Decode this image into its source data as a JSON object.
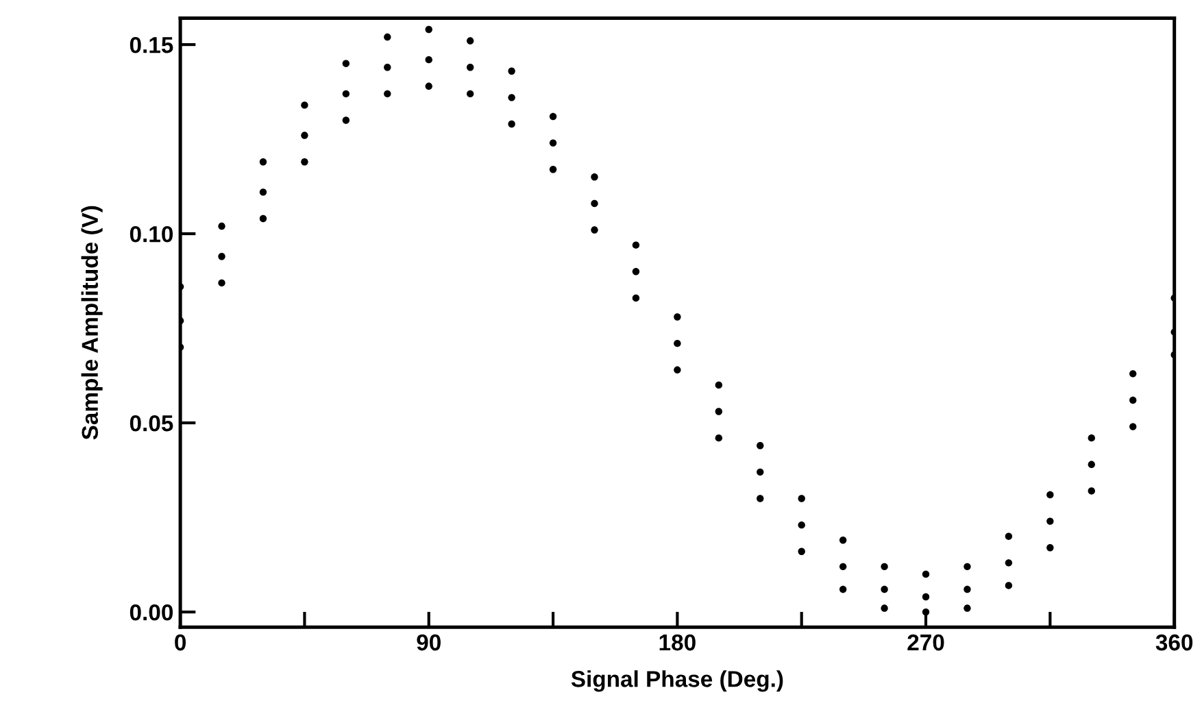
{
  "chart_data": {
    "type": "scatter",
    "xlabel": "Signal Phase (Deg.)",
    "ylabel": "Sample Amplitude (V)",
    "xlim": [
      0,
      360
    ],
    "xticks": [
      0,
      {
        "value": 45,
        "label": null
      },
      90,
      {
        "value": 135,
        "label": null
      },
      180,
      {
        "value": 225,
        "label": null
      },
      270,
      {
        "value": 315,
        "label": null
      },
      360
    ],
    "ylim": [
      -0.004,
      0.157
    ],
    "yticks": [
      {
        "value": 0,
        "label": "0.00"
      },
      {
        "value": 0.05,
        "label": "0.05"
      },
      {
        "value": 0.1,
        "label": "0.10"
      },
      {
        "value": 0.15,
        "label": "0.15"
      }
    ],
    "grid": false,
    "legend": false,
    "marker": "circle",
    "series": [
      {
        "color": "#000000",
        "x": [
          0,
          15,
          30,
          45,
          60,
          75,
          90,
          105,
          120,
          135,
          150,
          165,
          180,
          195,
          210,
          225,
          240,
          255,
          270,
          285,
          300,
          315,
          330,
          345,
          360
        ],
        "values": [
          0.077,
          0.094,
          0.111,
          0.126,
          0.137,
          0.144,
          0.146,
          0.144,
          0.136,
          0.124,
          0.108,
          0.09,
          0.071,
          0.053,
          0.037,
          0.023,
          0.012,
          0.006,
          0.004,
          0.006,
          0.013,
          0.024,
          0.039,
          0.056,
          0.074
        ]
      },
      {
        "color": "#000000",
        "x": [
          0,
          15,
          30,
          45,
          60,
          75,
          90,
          105,
          120,
          135,
          150,
          165,
          180,
          195,
          210,
          225,
          240,
          255,
          270,
          285,
          300,
          315,
          330,
          345,
          360
        ],
        "values": [
          0.086,
          0.102,
          0.119,
          0.134,
          0.145,
          0.152,
          0.154,
          0.151,
          0.143,
          0.131,
          0.115,
          0.097,
          0.078,
          0.06,
          0.044,
          0.03,
          0.019,
          0.012,
          0.01,
          0.012,
          0.02,
          0.031,
          0.046,
          0.063,
          0.083
        ]
      },
      {
        "color": "#000000",
        "x": [
          0,
          15,
          30,
          45,
          60,
          75,
          90,
          105,
          120,
          135,
          150,
          165,
          180,
          195,
          210,
          225,
          240,
          255,
          270,
          285,
          300,
          315,
          330,
          345,
          360
        ],
        "values": [
          0.07,
          0.087,
          0.104,
          0.119,
          0.13,
          0.137,
          0.139,
          0.137,
          0.129,
          0.117,
          0.101,
          0.083,
          0.064,
          0.046,
          0.03,
          0.016,
          0.006,
          0.001,
          0.0,
          0.001,
          0.007,
          0.017,
          0.032,
          0.049,
          0.068
        ]
      }
    ]
  }
}
